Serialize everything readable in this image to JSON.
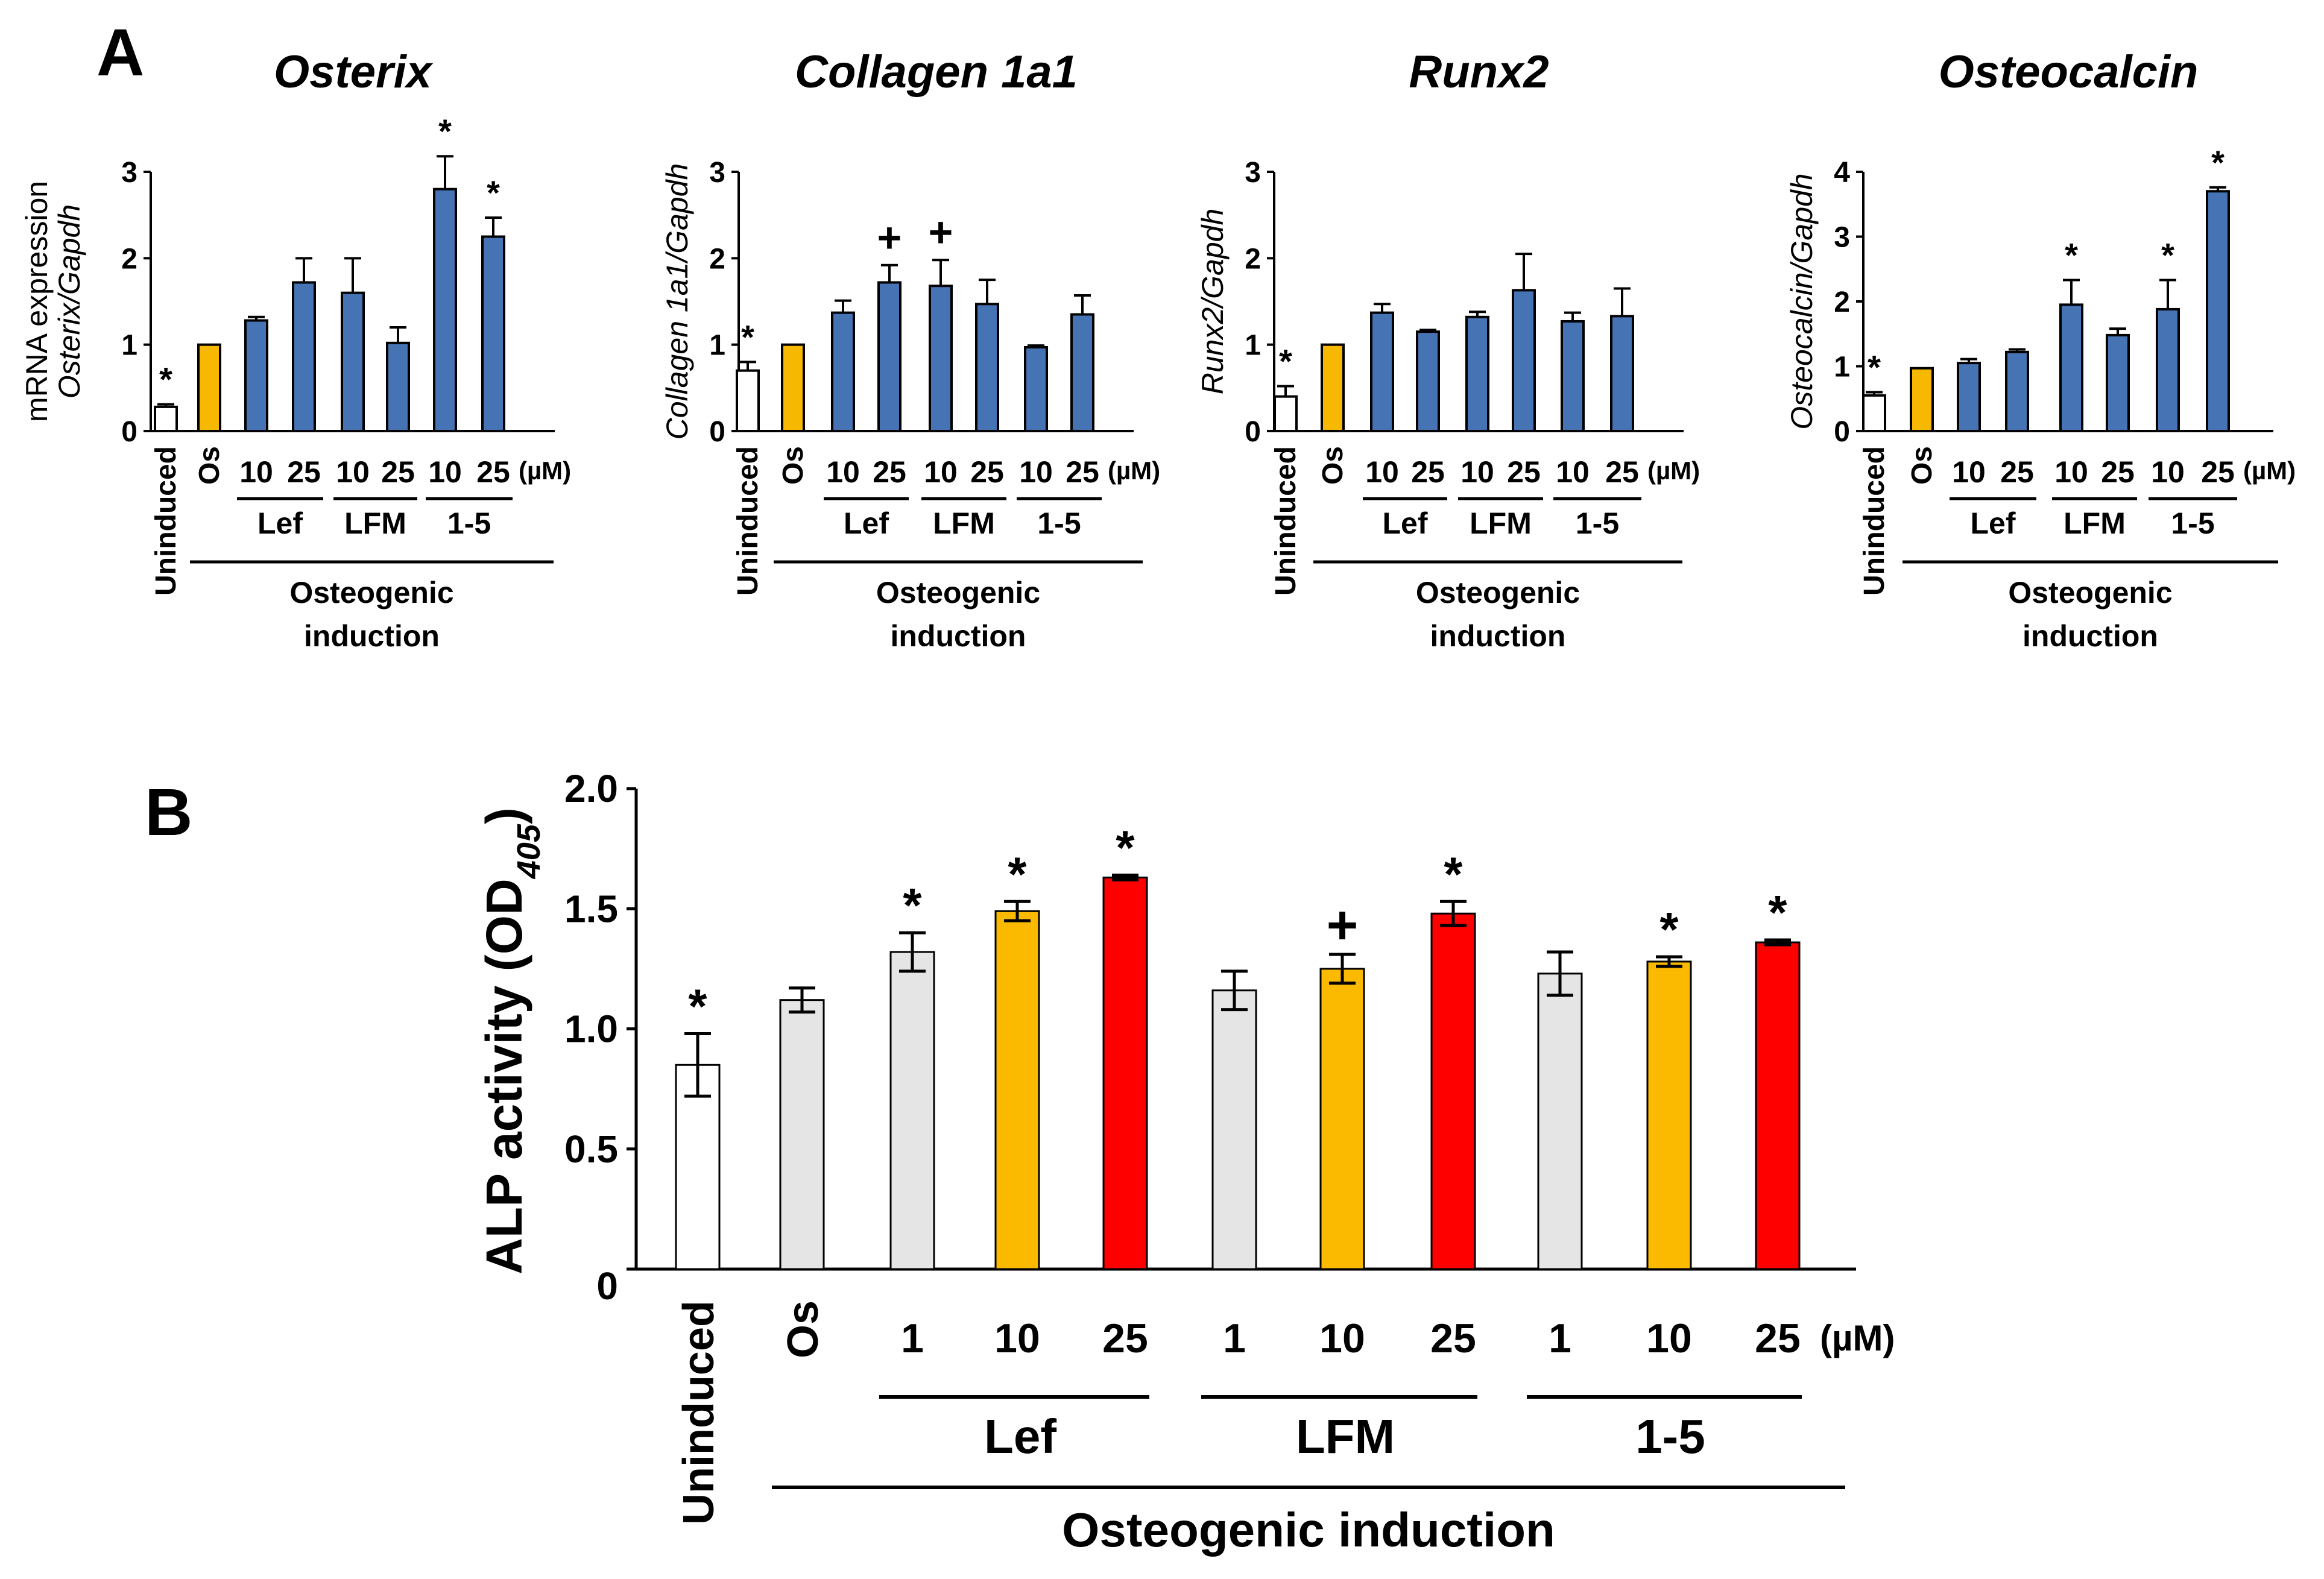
{
  "panel_labels": {
    "a": "A",
    "b": "B"
  },
  "small_charts": {
    "treatments": [
      "Uninduced",
      "Os",
      "10",
      "25",
      "10",
      "25",
      "10",
      "25"
    ],
    "unit": "(µM)",
    "groups": [
      "Lef",
      "LFM",
      "1-5"
    ],
    "induction_lines": [
      "Osteogenic",
      "induction"
    ]
  },
  "chart_data": [
    {
      "type": "bar",
      "title": "Osterix",
      "ylabel_top": "mRNA expression",
      "ylabel": "Osterix/Gapdh",
      "ylim": [
        0,
        3
      ],
      "ticks": [
        0,
        1,
        2,
        3
      ],
      "values": [
        0.28,
        1.0,
        1.28,
        1.72,
        1.6,
        1.02,
        2.8,
        2.25
      ],
      "errors": [
        0.03,
        0.0,
        0.04,
        0.28,
        0.4,
        0.18,
        0.38,
        0.22
      ],
      "marks": [
        "*",
        "",
        "",
        "",
        "",
        "",
        "*",
        "*"
      ],
      "colors": [
        "#ffffff",
        "#f6b800",
        "#4673b3",
        "#4673b3",
        "#4673b3",
        "#4673b3",
        "#4673b3",
        "#4673b3"
      ]
    },
    {
      "type": "bar",
      "title": "Collagen 1a1",
      "ylabel": "Collagen 1a1/Gapdh",
      "ylim": [
        0,
        3
      ],
      "ticks": [
        0,
        1,
        2,
        3
      ],
      "values": [
        0.7,
        1.0,
        1.37,
        1.72,
        1.68,
        1.47,
        0.97,
        1.35
      ],
      "errors": [
        0.1,
        0.0,
        0.14,
        0.2,
        0.3,
        0.28,
        0.02,
        0.22
      ],
      "marks": [
        "*",
        "",
        "",
        "+",
        "+",
        "",
        "",
        ""
      ],
      "colors": [
        "#ffffff",
        "#f6b800",
        "#4673b3",
        "#4673b3",
        "#4673b3",
        "#4673b3",
        "#4673b3",
        "#4673b3"
      ]
    },
    {
      "type": "bar",
      "title": "Runx2",
      "ylabel": "Runx2/Gapdh",
      "ylim": [
        0,
        3
      ],
      "ticks": [
        0,
        1,
        2,
        3
      ],
      "values": [
        0.4,
        1.0,
        1.37,
        1.15,
        1.32,
        1.63,
        1.27,
        1.33
      ],
      "errors": [
        0.12,
        0.0,
        0.1,
        0.02,
        0.06,
        0.42,
        0.1,
        0.32
      ],
      "marks": [
        "*",
        "",
        "",
        "",
        "",
        "",
        "",
        ""
      ],
      "colors": [
        "#ffffff",
        "#f6b800",
        "#4673b3",
        "#4673b3",
        "#4673b3",
        "#4673b3",
        "#4673b3",
        "#4673b3"
      ]
    },
    {
      "type": "bar",
      "title": "Osteocalcin",
      "ylabel": "Osteocalcin/Gapdh",
      "ylim": [
        0,
        4
      ],
      "ticks": [
        0,
        1,
        2,
        3,
        4
      ],
      "values": [
        0.55,
        0.97,
        1.05,
        1.22,
        1.95,
        1.48,
        1.88,
        3.7
      ],
      "errors": [
        0.05,
        0.0,
        0.06,
        0.04,
        0.38,
        0.1,
        0.45,
        0.06
      ],
      "marks": [
        "*",
        "",
        "",
        "",
        "*",
        "",
        "*",
        "*"
      ],
      "colors": [
        "#ffffff",
        "#f6b800",
        "#4673b3",
        "#4673b3",
        "#4673b3",
        "#4673b3",
        "#4673b3",
        "#4673b3"
      ]
    },
    {
      "type": "bar",
      "title": "",
      "ylabel": "ALP activity (OD",
      "ylabel_sub": "405",
      "ylabel_close": ")",
      "ylim": [
        0,
        2.0
      ],
      "ticks": [
        "0",
        "0.5",
        "1.0",
        "1.5",
        "2.0"
      ],
      "tick_values": [
        0,
        0.5,
        1.0,
        1.5,
        2.0
      ],
      "categories": [
        "Uninduced",
        "Os",
        "1",
        "10",
        "25",
        "1",
        "10",
        "25",
        "1",
        "10",
        "25"
      ],
      "unit": "(µM)",
      "groups": [
        "Lef",
        "LFM",
        "1-5"
      ],
      "induction_label": "Osteogenic induction",
      "values": [
        0.85,
        1.12,
        1.32,
        1.49,
        1.63,
        1.16,
        1.25,
        1.48,
        1.23,
        1.28,
        1.36
      ],
      "errors": [
        0.13,
        0.05,
        0.08,
        0.04,
        0.01,
        0.08,
        0.06,
        0.05,
        0.09,
        0.02,
        0.01
      ],
      "marks": [
        "*",
        "",
        "*",
        "*",
        "*",
        "",
        "+",
        "*",
        "",
        "*",
        "*"
      ],
      "colors": [
        "#ffffff",
        "#e5e5e5",
        "#e5e5e5",
        "#fbb900",
        "#fe0000",
        "#e5e5e5",
        "#fbb900",
        "#fe0000",
        "#e5e5e5",
        "#fbb900",
        "#fe0000"
      ]
    }
  ]
}
